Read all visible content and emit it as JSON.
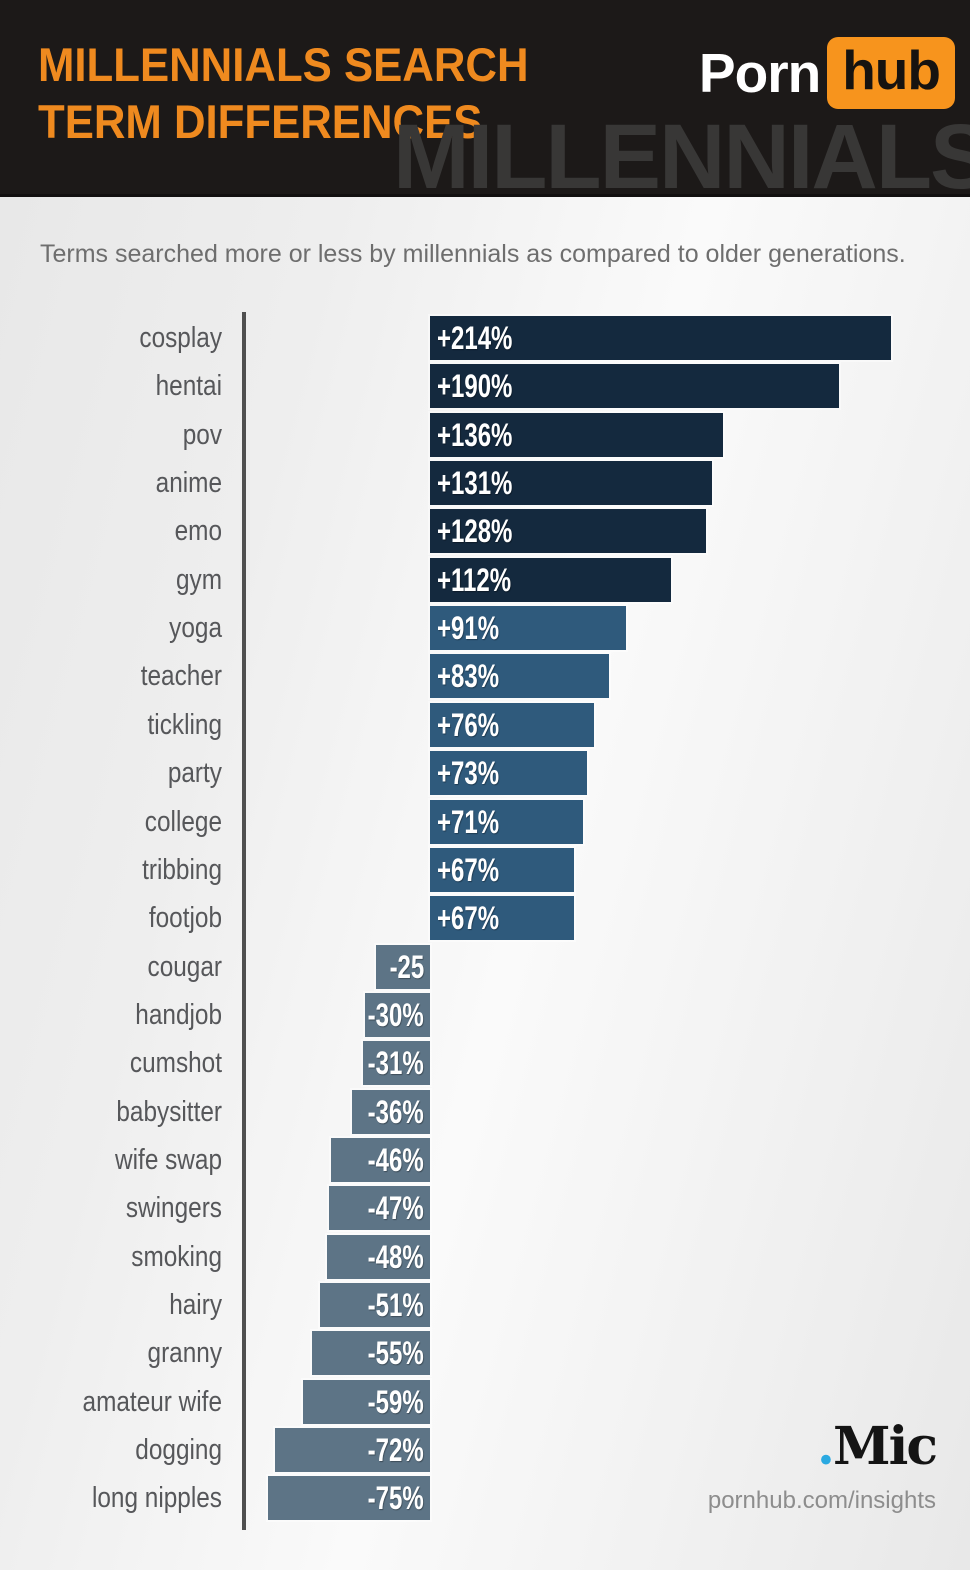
{
  "header": {
    "title_line1": "MILLENNIALS SEARCH",
    "title_line2": "TERM DIFFERENCES",
    "watermark": "MILLENNIALS",
    "logo": {
      "porn": "Porn",
      "hub": "hub"
    }
  },
  "subtitle": "Terms searched more or less by millennials as compared to older generations.",
  "footer": {
    "mic_dot": ".",
    "mic_name": "Mic",
    "url": "pornhub.com/insights"
  },
  "colors": {
    "title_orange": "#ef8a1f",
    "hub_badge_orange": "#f7941d",
    "bar_high_positive": "#14293e",
    "bar_positive": "#2f5a7c",
    "bar_negative": "#5d7486",
    "axis_gray": "#4f4f4f",
    "term_label_gray": "#56575a",
    "mic_dot_blue": "#2aa9e1"
  },
  "chart_data": {
    "type": "bar",
    "orientation": "horizontal",
    "title": "Millennials Search Term Differences",
    "subtitle": "Terms searched more or less by millennials as compared to older generations.",
    "unit": "percent difference vs older generations",
    "value_range": [
      -75,
      214
    ],
    "high_color_threshold": 100,
    "rows": [
      {
        "term": "cosplay",
        "value": 214,
        "label": "+214%"
      },
      {
        "term": "hentai",
        "value": 190,
        "label": "+190%"
      },
      {
        "term": "pov",
        "value": 136,
        "label": "+136%"
      },
      {
        "term": "anime",
        "value": 131,
        "label": "+131%"
      },
      {
        "term": "emo",
        "value": 128,
        "label": "+128%"
      },
      {
        "term": "gym",
        "value": 112,
        "label": "+112%"
      },
      {
        "term": "yoga",
        "value": 91,
        "label": "+91%"
      },
      {
        "term": "teacher",
        "value": 83,
        "label": "+83%"
      },
      {
        "term": "tickling",
        "value": 76,
        "label": "+76%"
      },
      {
        "term": "party",
        "value": 73,
        "label": "+73%"
      },
      {
        "term": "college",
        "value": 71,
        "label": "+71%"
      },
      {
        "term": "tribbing",
        "value": 67,
        "label": "+67%"
      },
      {
        "term": "footjob",
        "value": 67,
        "label": "+67%"
      },
      {
        "term": "cougar",
        "value": -25,
        "label": "-25"
      },
      {
        "term": "handjob",
        "value": -30,
        "label": "-30%"
      },
      {
        "term": "cumshot",
        "value": -31,
        "label": "-31%"
      },
      {
        "term": "babysitter",
        "value": -36,
        "label": "-36%"
      },
      {
        "term": "wife swap",
        "value": -46,
        "label": "-46%"
      },
      {
        "term": "swingers",
        "value": -47,
        "label": "-47%"
      },
      {
        "term": "smoking",
        "value": -48,
        "label": "-48%"
      },
      {
        "term": "hairy",
        "value": -51,
        "label": "-51%"
      },
      {
        "term": "granny",
        "value": -55,
        "label": "-55%"
      },
      {
        "term": "amateur wife",
        "value": -59,
        "label": "-59%"
      },
      {
        "term": "dogging",
        "value": -72,
        "label": "-72%"
      },
      {
        "term": "long nipples",
        "value": -75,
        "label": "-75%"
      }
    ]
  }
}
